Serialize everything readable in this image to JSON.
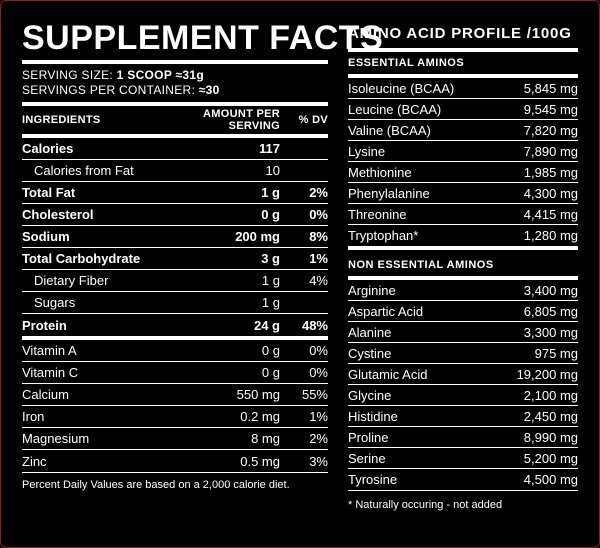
{
  "supplement": {
    "title": "SUPPLEMENT FACTS",
    "serving_size_label": "SERVING SIZE: ",
    "serving_size_value": "1 SCOOP ≈31g",
    "servings_label": "SERVINGS PER CONTAINER: ",
    "servings_value": "≈30",
    "headers": {
      "ingredients": "INGREDIENTS",
      "amount": "AMOUNT PER SERVING",
      "dv": "% DV"
    },
    "rows": [
      {
        "name": "Calories",
        "amount": "117",
        "dv": "",
        "bold": true
      },
      {
        "name": "Calories from Fat",
        "amount": "10",
        "dv": "",
        "indent": true
      },
      {
        "name": "Total Fat",
        "amount": "1 g",
        "dv": "2%",
        "bold": true
      },
      {
        "name": "Cholesterol",
        "amount": "0 g",
        "dv": "0%",
        "bold": true
      },
      {
        "name": "Sodium",
        "amount": "200 mg",
        "dv": "8%",
        "bold": true
      },
      {
        "name": "Total Carbohydrate",
        "amount": "3 g",
        "dv": "1%",
        "bold": true
      },
      {
        "name": "Dietary Fiber",
        "amount": "1 g",
        "dv": "4%",
        "indent": true
      },
      {
        "name": "Sugars",
        "amount": "1 g",
        "dv": "",
        "indent": true
      },
      {
        "name": "Protein",
        "amount": "24 g",
        "dv": "48%",
        "bold": true
      }
    ],
    "vitamins": [
      {
        "name": "Vitamin A",
        "amount": "0 g",
        "dv": "0%"
      },
      {
        "name": "Vitamin C",
        "amount": "0 g",
        "dv": "0%"
      },
      {
        "name": "Calcium",
        "amount": "550 mg",
        "dv": "55%"
      },
      {
        "name": "Iron",
        "amount": "0.2 mg",
        "dv": "1%"
      },
      {
        "name": "Magnesium",
        "amount": "8 mg",
        "dv": "2%"
      },
      {
        "name": "Zinc",
        "amount": "0.5 mg",
        "dv": "3%"
      }
    ],
    "footnote": "Percent Daily Values are based on a 2,000 calorie diet."
  },
  "amino": {
    "title": "AMINO ACID PROFILE /100G",
    "essential_label": "ESSENTIAL AMINOS",
    "essential": [
      {
        "name": "Isoleucine (BCAA)",
        "amount": "5,845 mg"
      },
      {
        "name": "Leucine (BCAA)",
        "amount": "9,545 mg"
      },
      {
        "name": "Valine (BCAA)",
        "amount": "7,820 mg"
      },
      {
        "name": "Lysine",
        "amount": "7,890 mg"
      },
      {
        "name": "Methionine",
        "amount": "1,985 mg"
      },
      {
        "name": "Phenylalanine",
        "amount": "4,300 mg"
      },
      {
        "name": "Threonine",
        "amount": "4,415 mg"
      },
      {
        "name": "Tryptophan*",
        "amount": "1,280 mg"
      }
    ],
    "non_essential_label": "NON ESSENTIAL AMINOS",
    "non_essential": [
      {
        "name": "Arginine",
        "amount": "3,400 mg"
      },
      {
        "name": "Aspartic Acid",
        "amount": "6,805 mg"
      },
      {
        "name": "Alanine",
        "amount": "3,300 mg"
      },
      {
        "name": "Cystine",
        "amount": "975 mg"
      },
      {
        "name": "Glutamic Acid",
        "amount": "19,200 mg"
      },
      {
        "name": "Glycine",
        "amount": "2,100 mg"
      },
      {
        "name": "Histidine",
        "amount": "2,450 mg"
      },
      {
        "name": "Proline",
        "amount": "8,990 mg"
      },
      {
        "name": "Serine",
        "amount": "5,200 mg"
      },
      {
        "name": "Tyrosine",
        "amount": "4,500 mg"
      }
    ],
    "footnote": "*  Naturally occuring - not added"
  },
  "colors": {
    "background": "#000000",
    "text": "#ffffff",
    "border": "#8a1f1f"
  }
}
